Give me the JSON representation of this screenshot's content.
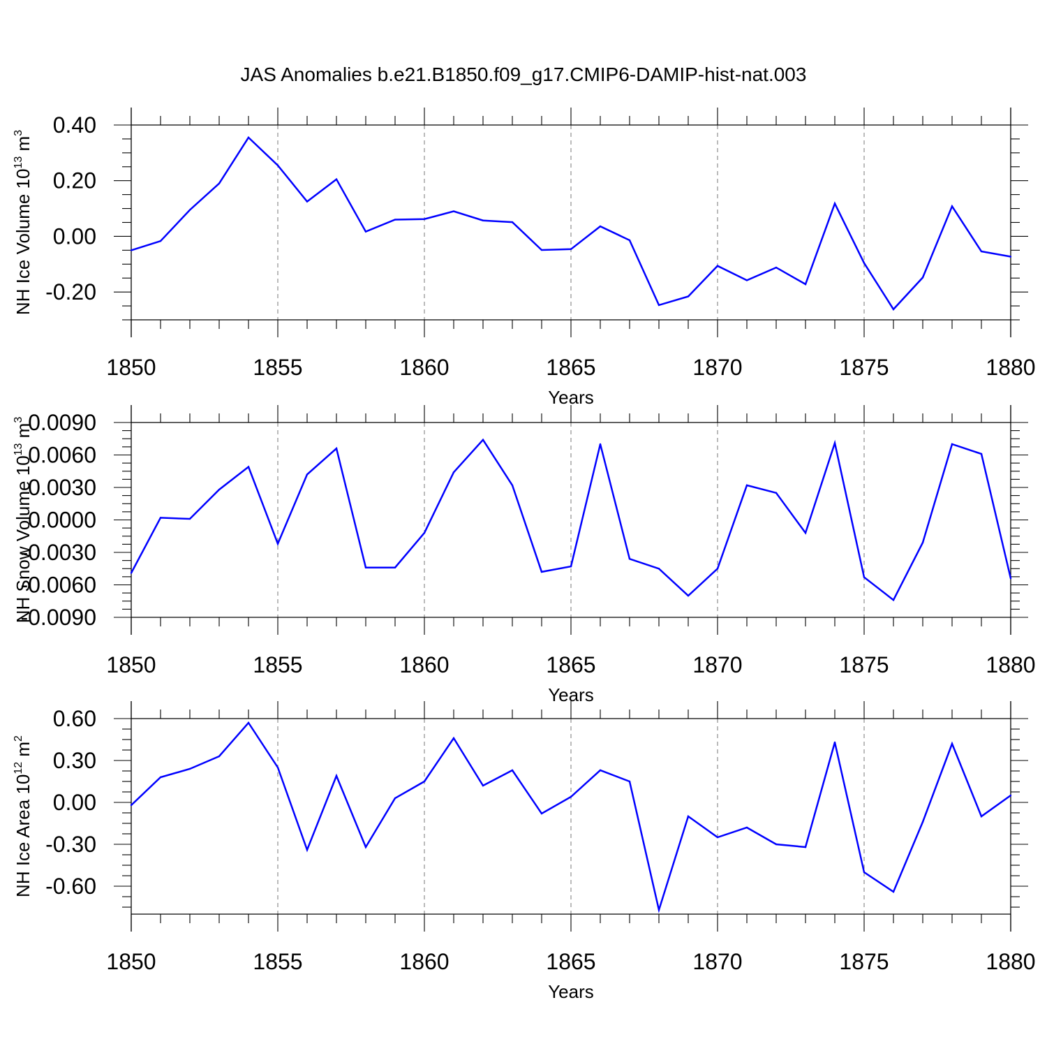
{
  "figure": {
    "title": "JAS Anomalies b.e21.B1850.f09_g17.CMIP6-DAMIP-hist-nat.003",
    "line_color": "#0000ff"
  },
  "chart_data": [
    {
      "type": "line",
      "title": "JAS Anomalies b.e21.B1850.f09_g17.CMIP6-DAMIP-hist-nat.003",
      "xlabel": "Years",
      "ylabel": "NH Ice Volume 10",
      "ylabel_exp": "13",
      "ylabel_unit": " m",
      "ylabel_unit_exp": "3",
      "xlim": [
        1850,
        1880
      ],
      "ylim": [
        -0.3,
        0.4
      ],
      "xticks": [
        "1850",
        "1855",
        "1860",
        "1865",
        "1870",
        "1875",
        "1880"
      ],
      "yticks": [
        "-0.20",
        "0.00",
        "0.20",
        "0.40"
      ],
      "grid_x": "dashed-major",
      "x": [
        1850,
        1851,
        1852,
        1853,
        1854,
        1855,
        1856,
        1857,
        1858,
        1859,
        1860,
        1861,
        1862,
        1863,
        1864,
        1865,
        1866,
        1867,
        1868,
        1869,
        1870,
        1871,
        1872,
        1873,
        1874,
        1875,
        1876,
        1877,
        1878,
        1879,
        1880
      ],
      "values": [
        -0.05,
        -0.017,
        0.095,
        0.19,
        0.355,
        0.255,
        0.125,
        0.205,
        0.017,
        0.06,
        0.062,
        0.09,
        0.057,
        0.051,
        -0.049,
        -0.046,
        0.036,
        -0.014,
        -0.247,
        -0.216,
        -0.106,
        -0.158,
        -0.112,
        -0.172,
        0.118,
        -0.096,
        -0.262,
        -0.148,
        0.108,
        -0.054,
        -0.073
      ]
    },
    {
      "type": "line",
      "xlabel": "Years",
      "ylabel": "NH Snow Volume 10",
      "ylabel_exp": "13",
      "ylabel_unit": " m",
      "ylabel_unit_exp": "3",
      "xlim": [
        1850,
        1880
      ],
      "ylim": [
        -0.009,
        0.009
      ],
      "xticks": [
        "1850",
        "1855",
        "1860",
        "1865",
        "1870",
        "1875",
        "1880"
      ],
      "yticks": [
        "-0.0090",
        "-0.0060",
        "-0.0030",
        "0.0000",
        "0.0030",
        "0.0060",
        "0.0090"
      ],
      "grid_x": "dashed-major",
      "x": [
        1850,
        1851,
        1852,
        1853,
        1854,
        1855,
        1856,
        1857,
        1858,
        1859,
        1860,
        1861,
        1862,
        1863,
        1864,
        1865,
        1866,
        1867,
        1868,
        1869,
        1870,
        1871,
        1872,
        1873,
        1874,
        1875,
        1876,
        1877,
        1878,
        1879,
        1880
      ],
      "values": [
        -0.0049,
        0.0002,
        0.0001,
        0.0028,
        0.0049,
        -0.0022,
        0.0042,
        0.0066,
        -0.0044,
        -0.0044,
        -0.0012,
        0.0044,
        0.0074,
        0.0032,
        -0.0048,
        -0.0043,
        0.007,
        -0.0036,
        -0.0045,
        -0.007,
        -0.0045,
        0.0032,
        0.0025,
        -0.0012,
        0.0071,
        -0.0053,
        -0.0074,
        -0.0021,
        0.007,
        0.0061,
        -0.0054
      ]
    },
    {
      "type": "line",
      "xlabel": "Years",
      "ylabel": "NH Ice Area 10",
      "ylabel_exp": "12",
      "ylabel_unit": " m",
      "ylabel_unit_exp": "2",
      "xlim": [
        1850,
        1880
      ],
      "ylim": [
        -0.8,
        0.6
      ],
      "xticks": [
        "1850",
        "1855",
        "1860",
        "1865",
        "1870",
        "1875",
        "1880"
      ],
      "yticks": [
        "-0.60",
        "-0.30",
        "0.00",
        "0.30",
        "0.60"
      ],
      "grid_x": "dashed-major",
      "x": [
        1850,
        1851,
        1852,
        1853,
        1854,
        1855,
        1856,
        1857,
        1858,
        1859,
        1860,
        1861,
        1862,
        1863,
        1864,
        1865,
        1866,
        1867,
        1868,
        1869,
        1870,
        1871,
        1872,
        1873,
        1874,
        1875,
        1876,
        1877,
        1878,
        1879,
        1880
      ],
      "values": [
        -0.02,
        0.18,
        0.24,
        0.33,
        0.57,
        0.25,
        -0.34,
        0.19,
        -0.32,
        0.03,
        0.15,
        0.46,
        0.12,
        0.23,
        -0.08,
        0.04,
        0.23,
        0.15,
        -0.77,
        -0.1,
        -0.25,
        -0.18,
        -0.3,
        -0.32,
        0.43,
        -0.5,
        -0.64,
        -0.14,
        0.42,
        -0.1,
        0.05
      ]
    }
  ]
}
